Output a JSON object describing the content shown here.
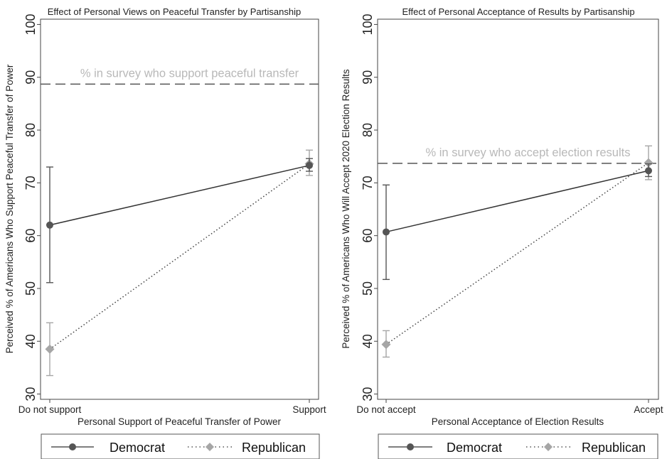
{
  "chart_data": [
    {
      "type": "line",
      "title": "Effect of Personal Views on Peaceful Transfer by Partisanship",
      "xlabel": "Personal Support of Peaceful Transfer of Power",
      "ylabel": "Perceived % of Americans Who Support Peaceful Transfer of Power",
      "categories": [
        "Do not support",
        "Support"
      ],
      "ylim": [
        29,
        101
      ],
      "yticks": [
        30,
        40,
        50,
        60,
        70,
        80,
        90,
        100
      ],
      "grid": false,
      "legend_position": "bottom",
      "series": [
        {
          "name": "Democrat",
          "values": [
            62.0,
            73.3
          ],
          "ci_low": [
            51.1,
            72.2
          ],
          "ci_high": [
            73.0,
            74.6
          ],
          "color": "#555555",
          "line_style": "solid",
          "marker": "circle"
        },
        {
          "name": "Republican",
          "values": [
            38.5,
            73.6
          ],
          "ci_low": [
            33.5,
            71.4
          ],
          "ci_high": [
            43.5,
            76.2
          ],
          "color": "#a6a6a6",
          "line_style": "dotted",
          "marker": "diamond"
        }
      ],
      "reference_line": {
        "value": 88.7,
        "label": "% in survey who support peaceful transfer"
      }
    },
    {
      "type": "line",
      "title": "Effect of Personal Acceptance of Results by Partisanship",
      "xlabel": "Personal Acceptance of Election Results",
      "ylabel": "Perceived % of Americans Who Will Accept 2020 Election Results",
      "categories": [
        "Do not accept",
        "Accept"
      ],
      "ylim": [
        29,
        101
      ],
      "yticks": [
        30,
        40,
        50,
        60,
        70,
        80,
        90,
        100
      ],
      "grid": false,
      "legend_position": "bottom",
      "series": [
        {
          "name": "Democrat",
          "values": [
            60.7,
            72.3
          ],
          "ci_low": [
            51.7,
            71.2
          ],
          "ci_high": [
            69.6,
            73.6
          ],
          "color": "#555555",
          "line_style": "solid",
          "marker": "circle"
        },
        {
          "name": "Republican",
          "values": [
            39.4,
            73.8
          ],
          "ci_low": [
            37.0,
            70.6
          ],
          "ci_high": [
            42.0,
            77.0
          ],
          "color": "#a6a6a6",
          "line_style": "dotted",
          "marker": "diamond"
        }
      ],
      "reference_line": {
        "value": 73.7,
        "label": "% in survey who accept election results"
      }
    }
  ]
}
